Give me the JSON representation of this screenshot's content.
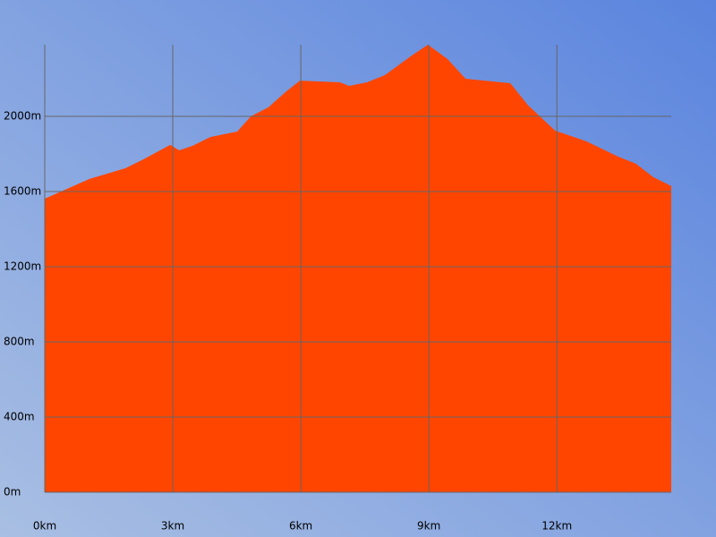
{
  "chart_data": {
    "type": "area",
    "color": "#ff4500",
    "grid": true,
    "x": [
      0,
      1.05,
      1.89,
      2.31,
      2.94,
      3.15,
      3.46,
      3.88,
      4.51,
      4.83,
      5.24,
      5.66,
      5.98,
      6.92,
      7.13,
      7.55,
      7.97,
      8.6,
      8.98,
      9.44,
      9.86,
      10.91,
      11.33,
      11.96,
      12.69,
      13.43,
      13.85,
      14.26,
      14.68
    ],
    "values": [
      1562,
      1667,
      1724,
      1771,
      1848,
      1819,
      1843,
      1890,
      1919,
      2000,
      2048,
      2133,
      2190,
      2181,
      2162,
      2181,
      2219,
      2324,
      2381,
      2305,
      2200,
      2176,
      2057,
      1924,
      1867,
      1786,
      1748,
      1676,
      1629
    ],
    "xlim": [
      0,
      14.68
    ],
    "ylim": [
      0,
      2381
    ],
    "xticks": [
      {
        "value": 0,
        "label": "0km"
      },
      {
        "value": 3,
        "label": "3km"
      },
      {
        "value": 6,
        "label": "6km"
      },
      {
        "value": 9,
        "label": "9km"
      },
      {
        "value": 12,
        "label": "12km"
      }
    ],
    "yticks": [
      {
        "value": 0,
        "label": "0m"
      },
      {
        "value": 400,
        "label": "400m"
      },
      {
        "value": 800,
        "label": "800m"
      },
      {
        "value": 1200,
        "label": "1200m"
      },
      {
        "value": 1600,
        "label": "1600m"
      },
      {
        "value": 2000,
        "label": "2000m"
      }
    ]
  }
}
